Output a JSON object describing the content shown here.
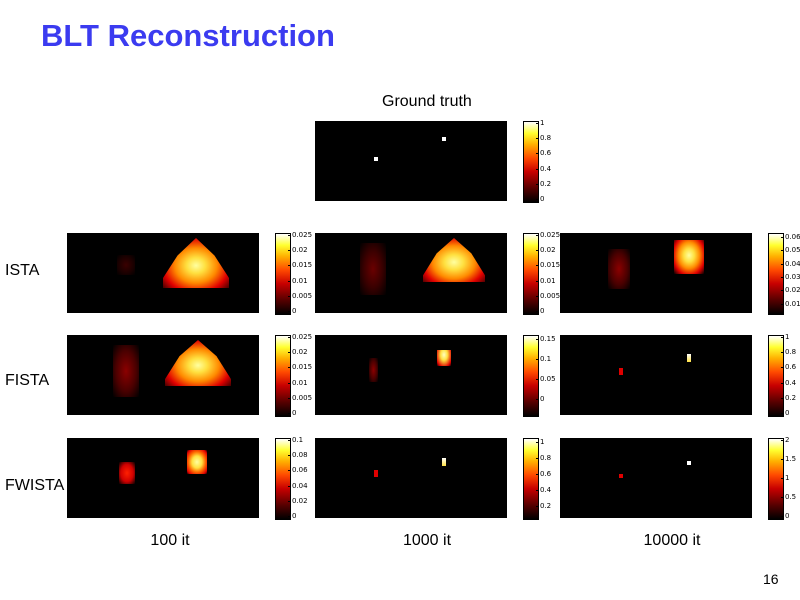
{
  "title": "BLT Reconstruction",
  "ground_truth_label": "Ground truth",
  "row_labels": [
    "ISTA",
    "FISTA",
    "FWISTA"
  ],
  "column_labels": [
    "100 it",
    "1000 it",
    "10000 it"
  ],
  "page_number": "16",
  "colorbar_ticks": {
    "gt": [
      "1",
      "0.8",
      "0.6",
      "0.4",
      "0.2",
      "0"
    ],
    "ista_100": [
      "0.025",
      "0.02",
      "0.015",
      "0.01",
      "0.005",
      "0"
    ],
    "ista_1000": [
      "0.025",
      "0.02",
      "0.015",
      "0.01",
      "0.005",
      "0"
    ],
    "ista_10000": [
      "0.06",
      "0.05",
      "0.04",
      "0.03",
      "0.02",
      "0.01"
    ],
    "fista_100": [
      "0.025",
      "0.02",
      "0.015",
      "0.01",
      "0.005",
      "0"
    ],
    "fista_1000": [
      "0.15",
      "0.1",
      "0.05",
      "0"
    ],
    "fista_10000": [
      "1",
      "0.8",
      "0.6",
      "0.4",
      "0.2",
      "0"
    ],
    "fwista_100": [
      "0.1",
      "0.08",
      "0.06",
      "0.04",
      "0.02",
      "0"
    ],
    "fwista_1000": [
      "1",
      "0.8",
      "0.6",
      "0.4",
      "0.2"
    ],
    "fwista_10000": [
      "2",
      "1.5",
      "1",
      "0.5",
      "0"
    ]
  },
  "colormap": {
    "dark": "#000000",
    "deep_red": "#8b0000",
    "red": "#e00000",
    "orange": "#ff6a00",
    "yellow": "#ffe040",
    "white": "#ffffff"
  }
}
